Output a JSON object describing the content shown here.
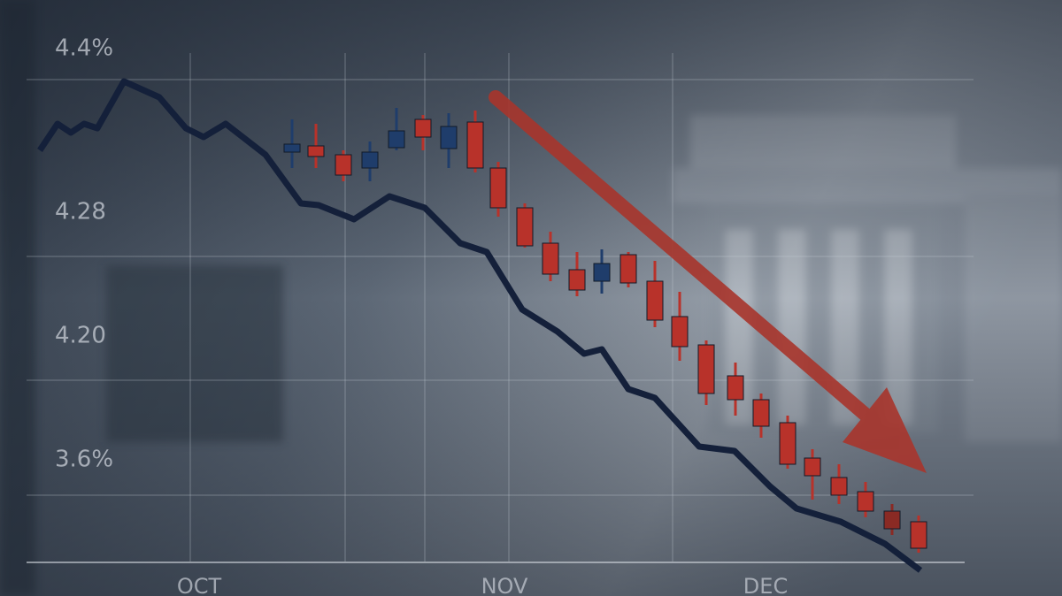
{
  "axis_labels": [
    "4.4%",
    "4.28",
    "4.20",
    "3.6%"
  ],
  "months": [
    "OCT",
    "NOV",
    "DEC"
  ]
}
